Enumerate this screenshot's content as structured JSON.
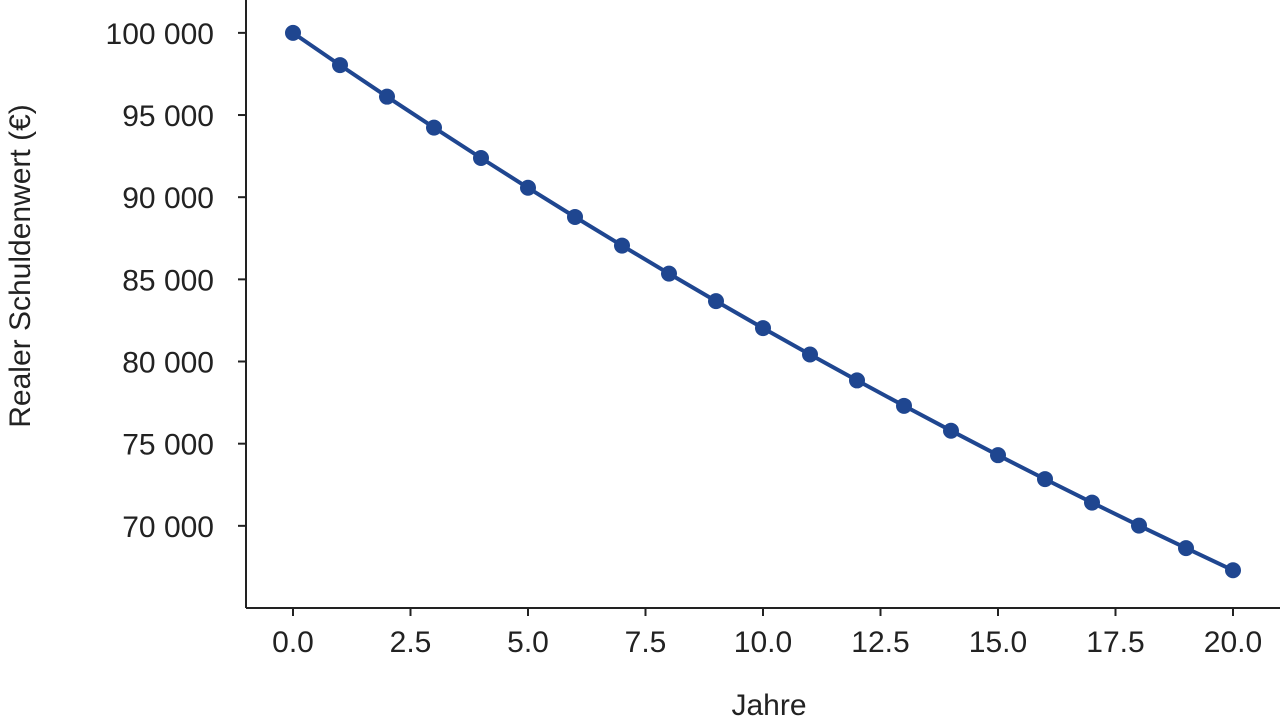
{
  "chart_data": {
    "type": "line",
    "title": "",
    "xlabel": "Jahre",
    "ylabel": "Realer Schuldenwert (€)",
    "xlim": [
      -1,
      21
    ],
    "ylim": [
      65000,
      102000
    ],
    "x_ticks": [
      0,
      2.5,
      5,
      7.5,
      10,
      12.5,
      15,
      17.5,
      20
    ],
    "x_tick_labels": [
      "0.0",
      "2.5",
      "5.0",
      "7.5",
      "10.0",
      "12.5",
      "15.0",
      "17.5",
      "20.0"
    ],
    "y_ticks": [
      70000,
      75000,
      80000,
      85000,
      90000,
      95000,
      100000
    ],
    "y_tick_labels": [
      "70 000",
      "75 000",
      "80 000",
      "85 000",
      "90 000",
      "95 000",
      "100 000"
    ],
    "grid": false,
    "series": [
      {
        "color": "#1f4690",
        "x": [
          0,
          1,
          2,
          3,
          4,
          5,
          6,
          7,
          8,
          9,
          10,
          11,
          12,
          13,
          14,
          15,
          16,
          17,
          18,
          19,
          20
        ],
        "y": [
          100000,
          98039,
          96117,
          94232,
          92385,
          90573,
          88797,
          87056,
          85349,
          83676,
          82035,
          80426,
          78849,
          77303,
          75788,
          74301,
          72845,
          71416,
          70016,
          68643,
          67297
        ]
      }
    ]
  }
}
